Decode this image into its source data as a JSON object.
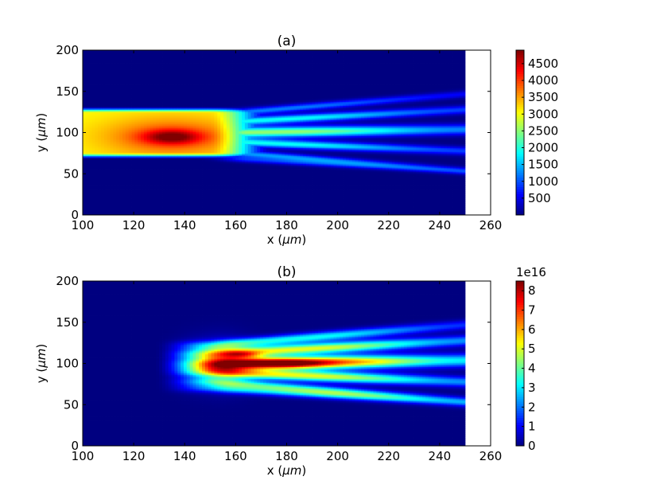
{
  "chart_data": [
    {
      "type": "heatmap",
      "title": "(a)",
      "xlabel_prefix": "x (",
      "xlabel_unit": "μm",
      "xlabel_suffix": ")",
      "ylabel_prefix": "y (",
      "ylabel_unit": "μm",
      "ylabel_suffix": ")",
      "xlim": [
        100,
        260
      ],
      "ylim": [
        0,
        200
      ],
      "xticks": [
        "100",
        "120",
        "140",
        "160",
        "180",
        "200",
        "220",
        "240",
        "260"
      ],
      "yticks": [
        "0",
        "50",
        "100",
        "150",
        "200"
      ],
      "data_xmax": 250,
      "colormap": "jet",
      "colorbar": {
        "min": 0,
        "max": 4900,
        "ticks": [
          "500",
          "1000",
          "1500",
          "2000",
          "2500",
          "3000",
          "3500",
          "4000",
          "4500"
        ],
        "tick_values": [
          500,
          1000,
          1500,
          2000,
          2500,
          3000,
          3500,
          4000,
          4500
        ],
        "multiplier_label": ""
      }
    },
    {
      "type": "heatmap",
      "title": "(b)",
      "xlabel_prefix": "x (",
      "xlabel_unit": "μm",
      "xlabel_suffix": ")",
      "ylabel_prefix": "y (",
      "ylabel_unit": "μm",
      "ylabel_suffix": ")",
      "xlim": [
        100,
        260
      ],
      "ylim": [
        0,
        200
      ],
      "xticks": [
        "100",
        "120",
        "140",
        "160",
        "180",
        "200",
        "220",
        "240",
        "260"
      ],
      "yticks": [
        "0",
        "50",
        "100",
        "150",
        "200"
      ],
      "data_xmax": 250,
      "colormap": "jet",
      "colorbar": {
        "min": 0,
        "max": 8.5,
        "ticks": [
          "0",
          "1",
          "2",
          "3",
          "4",
          "5",
          "6",
          "7",
          "8"
        ],
        "tick_values": [
          0,
          1,
          2,
          3,
          4,
          5,
          6,
          7,
          8
        ],
        "multiplier_label": "1e16"
      }
    }
  ]
}
